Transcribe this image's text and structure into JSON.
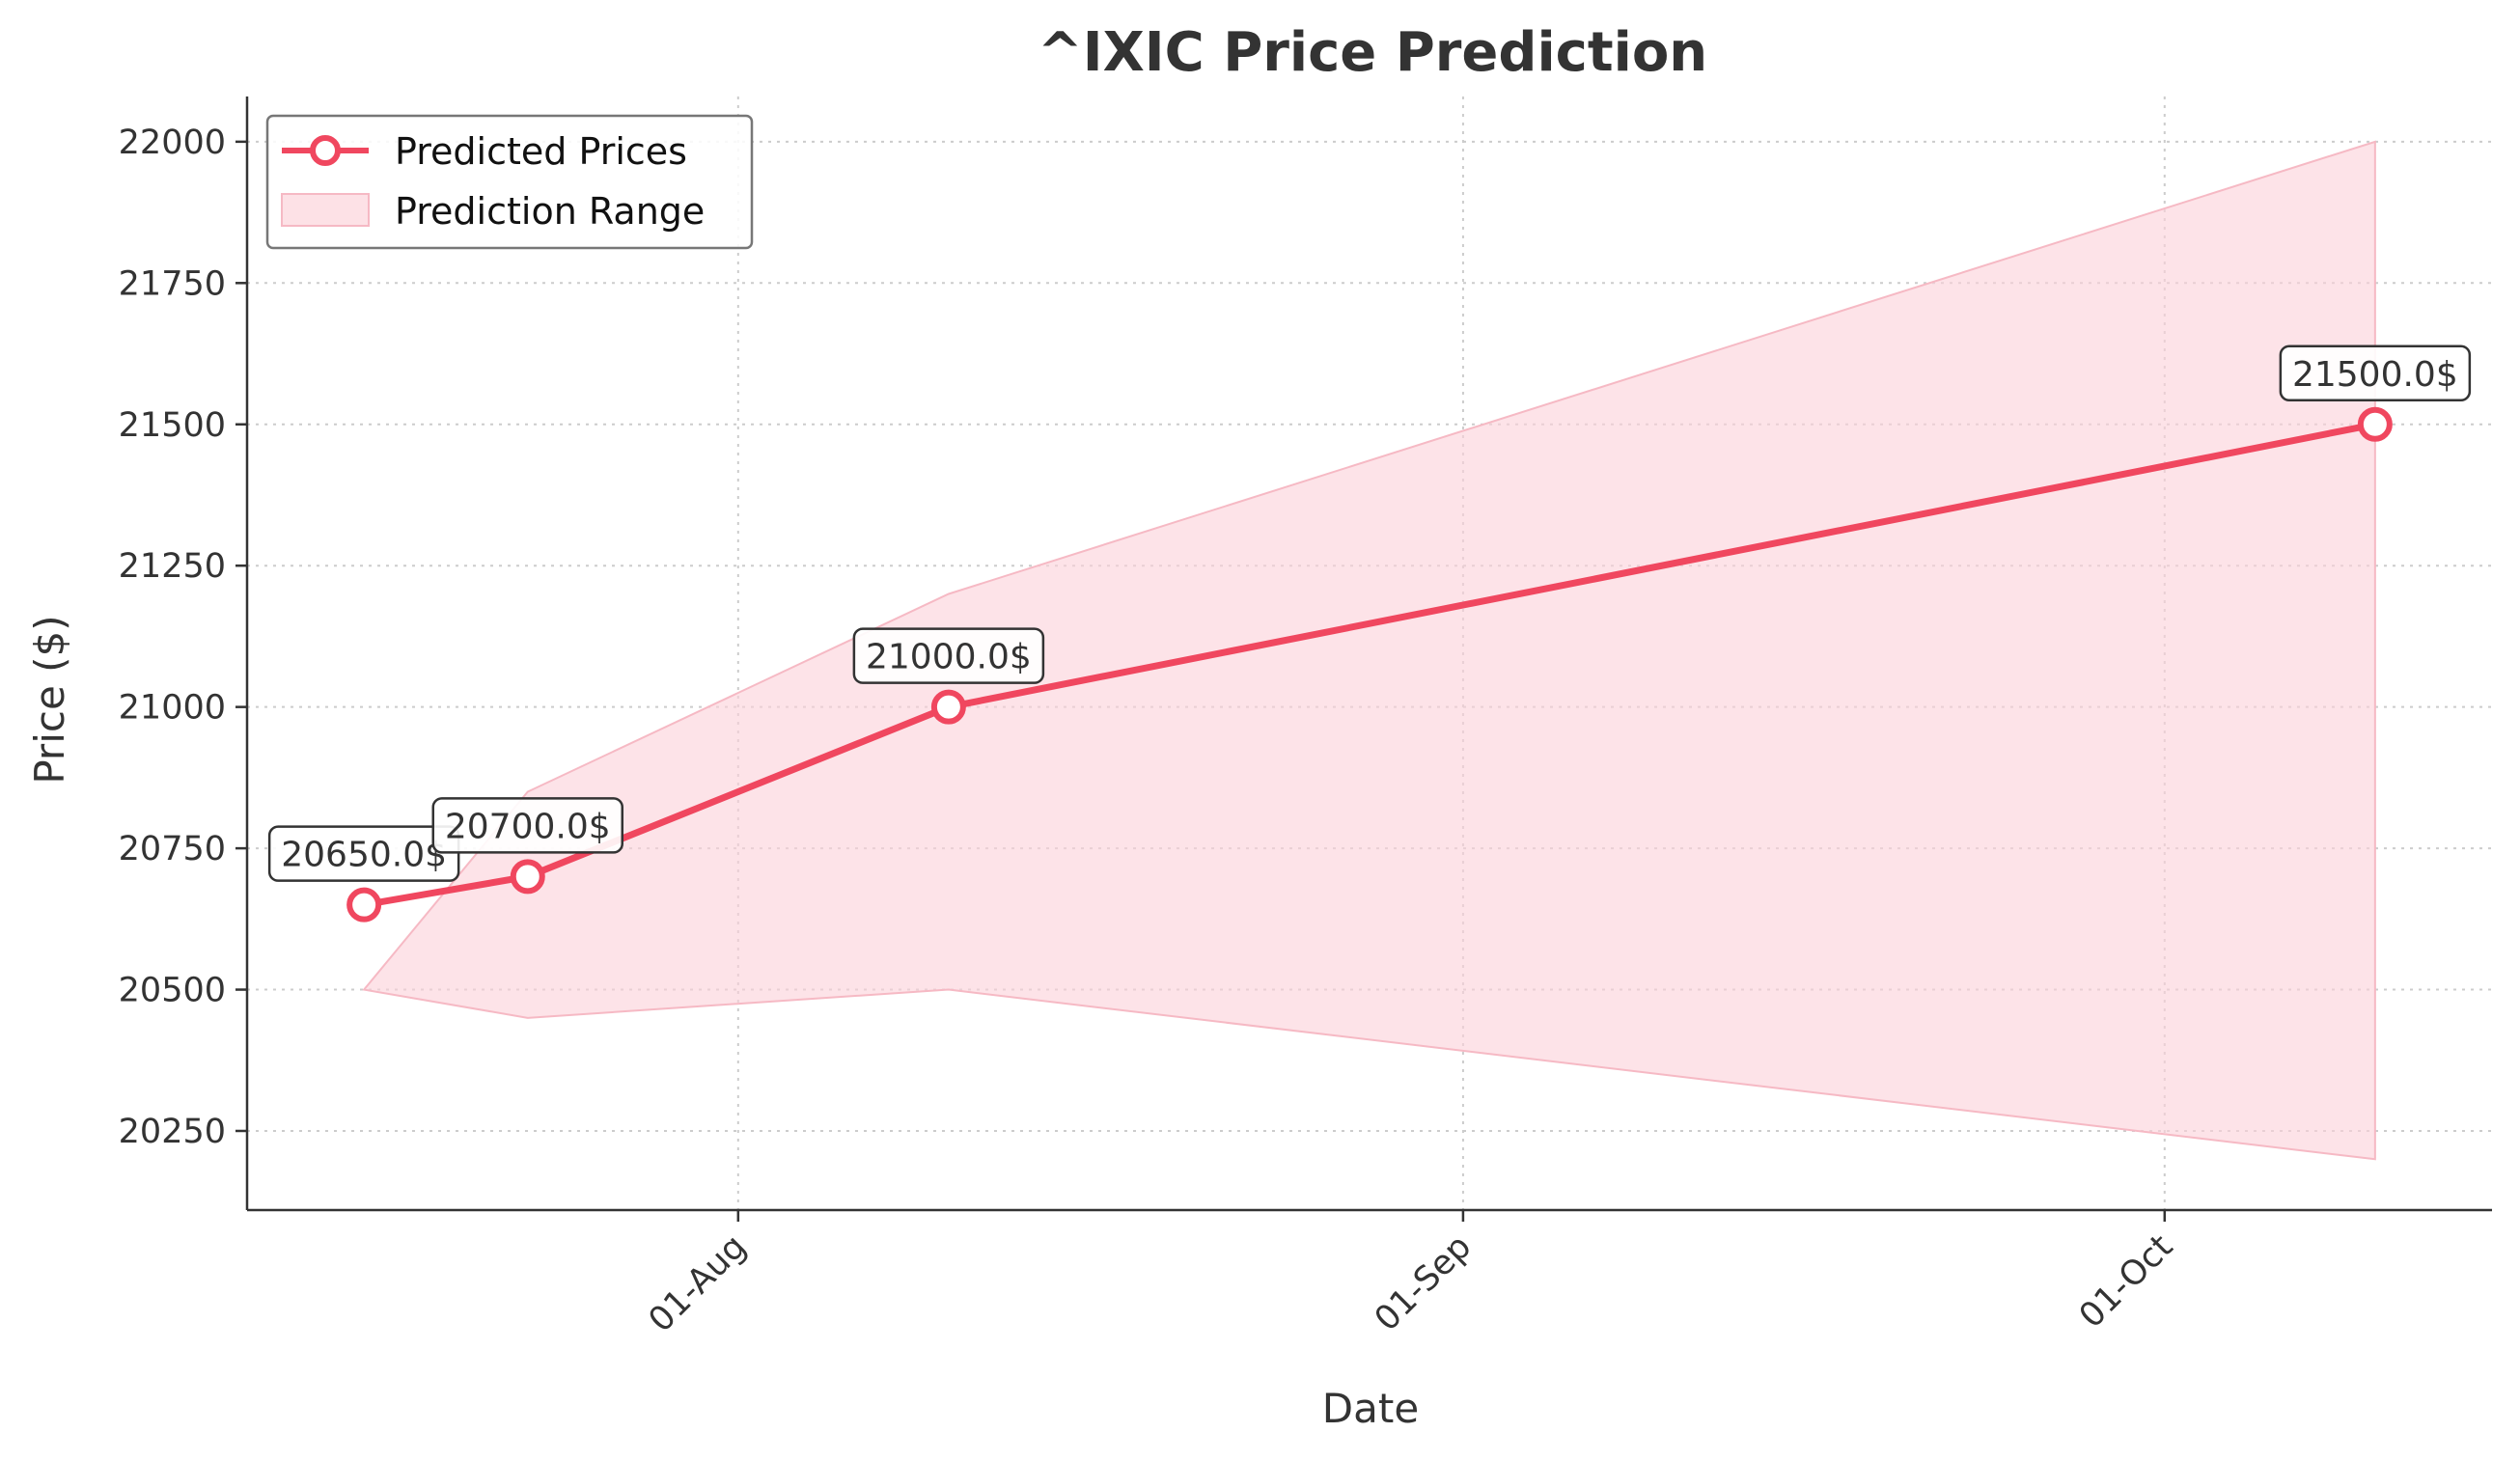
{
  "chart_data": {
    "type": "line",
    "title": "^IXIC Price Prediction",
    "xlabel": "Date",
    "ylabel": "Price ($)",
    "x": [
      "2025-07-16",
      "2025-07-23",
      "2025-08-10",
      "2025-10-10"
    ],
    "series": [
      {
        "name": "Predicted Prices",
        "values": [
          20650.0,
          20700.0,
          21000.0,
          21500.0
        ],
        "color": "#f0475f"
      }
    ],
    "range": {
      "name": "Prediction Range",
      "lower": [
        20500,
        20450,
        20500,
        20200
      ],
      "upper": [
        20500,
        20850,
        21200,
        22000
      ],
      "color": "#fcd1d9"
    },
    "annotations": [
      "20650.0$",
      "20700.0$",
      "21000.0$",
      "21500.0$"
    ],
    "x_ticks": [
      {
        "date": "2025-08-01",
        "label": "01-Aug"
      },
      {
        "date": "2025-09-01",
        "label": "01-Sep"
      },
      {
        "date": "2025-10-01",
        "label": "01-Oct"
      }
    ],
    "y_ticks": [
      20250,
      20500,
      20750,
      21000,
      21250,
      21500,
      21750,
      22000
    ],
    "xlim": [
      "2025-07-11",
      "2025-10-15"
    ],
    "ylim": [
      20110,
      22080
    ],
    "grid": true,
    "legend_position": "top-left"
  }
}
